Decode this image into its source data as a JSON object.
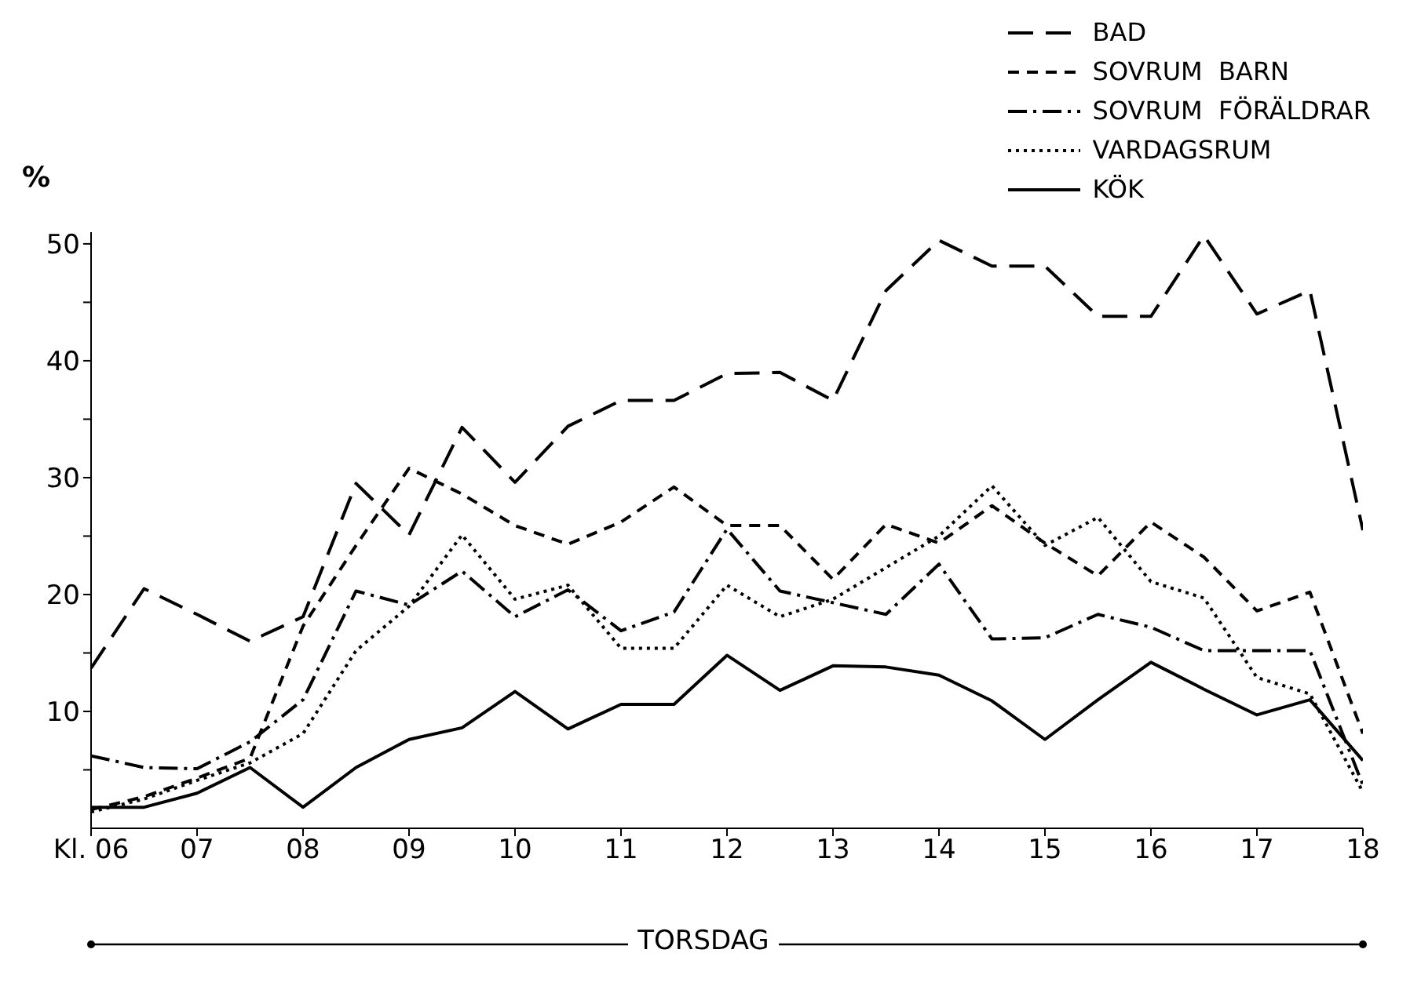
{
  "chart_data": {
    "type": "line",
    "xlabel": "TORSDAG",
    "ylabel": "%",
    "legend": "top right",
    "marker": "none",
    "x": [
      6,
      6.5,
      7,
      7.5,
      8,
      8.5,
      9,
      9.5,
      10,
      10.5,
      11,
      11.5,
      12,
      12.5,
      13,
      13.5,
      14,
      14.5,
      15,
      15.5,
      16,
      16.5,
      17,
      17.5,
      18
    ],
    "xlim": [
      6,
      18
    ],
    "xticks": [
      {
        "value": 6,
        "label": "Kl. 06"
      },
      {
        "value": 7,
        "label": "07"
      },
      {
        "value": 8,
        "label": "08"
      },
      {
        "value": 9,
        "label": "09"
      },
      {
        "value": 10,
        "label": "10"
      },
      {
        "value": 11,
        "label": "11"
      },
      {
        "value": 12,
        "label": "12"
      },
      {
        "value": 13,
        "label": "13"
      },
      {
        "value": 14,
        "label": "14"
      },
      {
        "value": 15,
        "label": "15"
      },
      {
        "value": 16,
        "label": "16"
      },
      {
        "value": 17,
        "label": "17"
      },
      {
        "value": 18,
        "label": "18"
      }
    ],
    "ylim": [
      0,
      51
    ],
    "yticks": [
      {
        "value": 5,
        "label": null
      },
      10,
      {
        "value": 15,
        "label": null
      },
      20,
      {
        "value": 25,
        "label": null
      },
      30,
      {
        "value": 35,
        "label": null
      },
      40,
      {
        "value": 45,
        "label": null
      },
      50
    ],
    "series": [
      {
        "name": "BAD",
        "color": "#000000",
        "line_style": "dashed",
        "values": [
          13.7,
          20.5,
          18.3,
          16.0,
          18.1,
          29.5,
          25.1,
          34.3,
          29.6,
          34.4,
          36.6,
          36.6,
          38.9,
          39.0,
          36.6,
          46.0,
          50.3,
          48.1,
          48.1,
          43.8,
          43.8,
          50.7,
          44.0,
          46.0,
          25.5
        ]
      },
      {
        "name": "SOVRUM  BARN",
        "color": "#000000",
        "line_style": "dashed",
        "values": [
          1.6,
          2.7,
          4.3,
          6.0,
          17.3,
          24.2,
          30.8,
          28.6,
          25.9,
          24.3,
          26.2,
          29.2,
          25.9,
          25.9,
          21.3,
          26.0,
          24.4,
          27.6,
          24.4,
          21.6,
          26.2,
          23.2,
          18.6,
          20.2,
          8.1
        ]
      },
      {
        "name": "SOVRUM  FÖRÄLDRAR",
        "color": "#000000",
        "line_style": "dashed",
        "values": [
          6.2,
          5.2,
          5.1,
          7.4,
          11.0,
          20.3,
          19.1,
          22.0,
          18.1,
          20.4,
          16.9,
          18.5,
          25.6,
          20.3,
          19.3,
          18.3,
          22.6,
          16.2,
          16.3,
          18.3,
          17.2,
          15.2,
          15.2,
          15.2,
          3.7
        ]
      },
      {
        "name": "VARDAGSRUM",
        "color": "#000000",
        "line_style": "dotted",
        "values": [
          1.4,
          2.5,
          4.1,
          5.6,
          8.1,
          15.2,
          19.0,
          25.1,
          19.6,
          20.8,
          15.4,
          15.4,
          20.8,
          18.1,
          19.6,
          22.3,
          25.0,
          29.3,
          24.2,
          26.6,
          21.1,
          19.7,
          12.9,
          11.5,
          3.1
        ]
      },
      {
        "name": "KÖK",
        "color": "#000000",
        "line_style": "solid",
        "values": [
          1.8,
          1.8,
          3.0,
          5.2,
          1.8,
          5.2,
          7.6,
          8.6,
          11.7,
          8.5,
          10.6,
          10.6,
          14.8,
          11.8,
          13.9,
          13.8,
          13.1,
          10.9,
          7.6,
          11.0,
          14.2,
          11.9,
          9.7,
          11.0,
          5.8
        ]
      }
    ]
  }
}
